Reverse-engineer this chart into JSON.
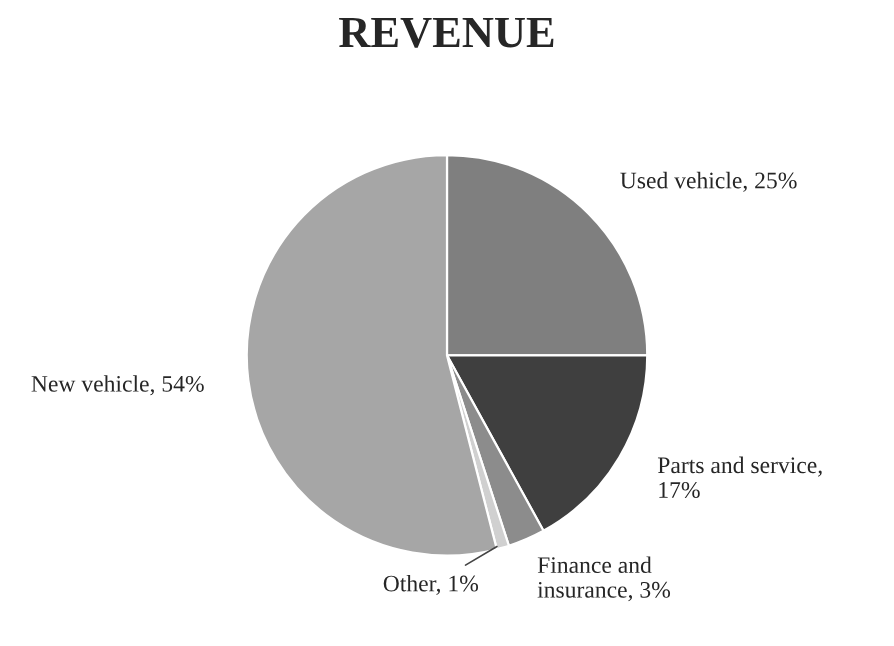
{
  "chart_data": {
    "type": "pie",
    "title": "REVENUE",
    "categories": [
      "Used vehicle, 25%",
      "Parts and service,\n17%",
      "Finance and\ninsurance, 3%",
      "Other, 1%",
      "New vehicle, 54%"
    ],
    "values": [
      25,
      17,
      3,
      1,
      54
    ],
    "colors": [
      "#7f7f7f",
      "#3f3f3f",
      "#8c8c8c",
      "#d0d0d0",
      "#a6a6a6"
    ],
    "legend": false
  }
}
